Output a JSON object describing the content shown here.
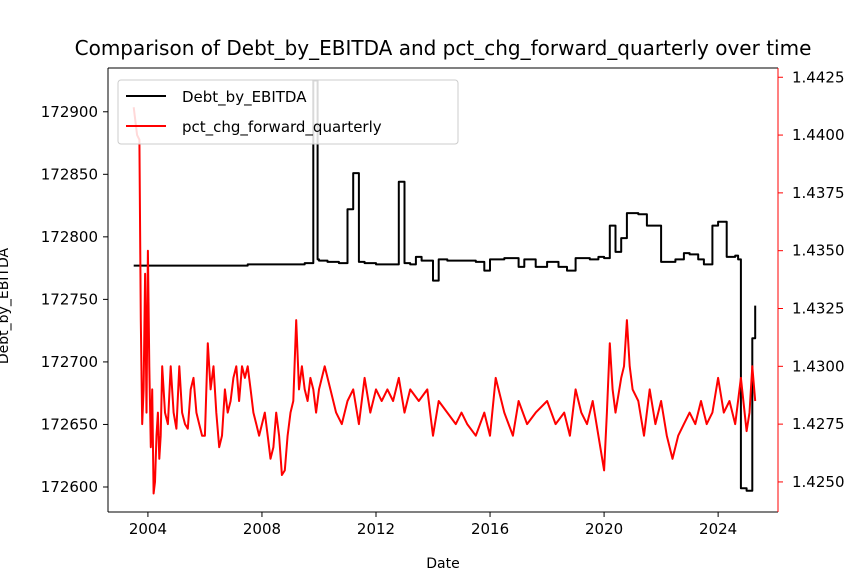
{
  "chart_data": {
    "type": "line",
    "title": "Comparison of Debt_by_EBITDA and pct_chg_forward_quarterly over time",
    "xlabel": "Date",
    "ylabel": "Debt_by_EBITDA",
    "xlim": [
      2002.6,
      2026.1
    ],
    "ylim_left": [
      172580,
      172935
    ],
    "ylim_right": [
      1.4237,
      1.4429
    ],
    "xticks": [
      2004,
      2008,
      2012,
      2016,
      2020,
      2024
    ],
    "yticks_left": [
      172600,
      172650,
      172700,
      172750,
      172800,
      172850,
      172900
    ],
    "yticks_right": [
      1.425,
      1.4275,
      1.43,
      1.4325,
      1.435,
      1.4375,
      1.44,
      1.4425
    ],
    "right_axis_color": "#ff0000",
    "grid": false,
    "legend_position": "upper-left",
    "series": [
      {
        "name": "Debt_by_EBITDA",
        "axis": "left",
        "color": "#000000",
        "step": true,
        "x": [
          2003.5,
          2004.0,
          2006.0,
          2007.0,
          2007.5,
          2009.0,
          2009.5,
          2009.8,
          2009.95,
          2010.0,
          2010.3,
          2010.7,
          2011.0,
          2011.2,
          2011.4,
          2011.6,
          2012.0,
          2012.8,
          2013.0,
          2013.2,
          2013.4,
          2013.6,
          2014.0,
          2014.2,
          2014.5,
          2015.5,
          2015.8,
          2016.0,
          2016.5,
          2017.0,
          2017.2,
          2017.6,
          2018.0,
          2018.4,
          2018.7,
          2019.0,
          2019.5,
          2019.8,
          2020.0,
          2020.2,
          2020.4,
          2020.6,
          2020.8,
          2021.2,
          2021.5,
          2022.0,
          2022.5,
          2022.8,
          2023.0,
          2023.3,
          2023.5,
          2023.8,
          2024.0,
          2024.3,
          2024.6,
          2024.7,
          2024.8,
          2025.0,
          2025.2,
          2025.3
        ],
        "values": [
          172777,
          172777,
          172777,
          172777,
          172778,
          172778,
          172779,
          172925,
          172782,
          172781,
          172780,
          172779,
          172822,
          172851,
          172780,
          172779,
          172778,
          172844,
          172779,
          172778,
          172784,
          172781,
          172765,
          172782,
          172781,
          172780,
          172773,
          172782,
          172783,
          172776,
          172782,
          172776,
          172780,
          172776,
          172773,
          172783,
          172782,
          172784,
          172783,
          172809,
          172788,
          172799,
          172819,
          172818,
          172809,
          172780,
          172782,
          172787,
          172786,
          172782,
          172778,
          172809,
          172812,
          172784,
          172785,
          172782,
          172599,
          172597,
          172719,
          172745
        ]
      },
      {
        "name": "pct_chg_forward_quarterly",
        "axis": "right",
        "color": "#ff0000",
        "step": false,
        "x": [
          2003.5,
          2003.62,
          2003.7,
          2003.75,
          2003.8,
          2003.85,
          2003.9,
          2003.95,
          2004.0,
          2004.05,
          2004.1,
          2004.15,
          2004.2,
          2004.25,
          2004.3,
          2004.35,
          2004.4,
          2004.45,
          2004.5,
          2004.6,
          2004.7,
          2004.8,
          2004.9,
          2005.0,
          2005.1,
          2005.2,
          2005.3,
          2005.4,
          2005.5,
          2005.6,
          2005.7,
          2005.8,
          2005.9,
          2006.0,
          2006.1,
          2006.2,
          2006.3,
          2006.4,
          2006.5,
          2006.6,
          2006.7,
          2006.8,
          2006.9,
          2007.0,
          2007.1,
          2007.2,
          2007.3,
          2007.4,
          2007.5,
          2007.6,
          2007.7,
          2007.8,
          2007.9,
          2008.0,
          2008.1,
          2008.2,
          2008.3,
          2008.4,
          2008.5,
          2008.6,
          2008.7,
          2008.8,
          2008.9,
          2009.0,
          2009.1,
          2009.2,
          2009.3,
          2009.4,
          2009.5,
          2009.6,
          2009.7,
          2009.8,
          2009.9,
          2010.0,
          2010.2,
          2010.4,
          2010.6,
          2010.8,
          2011.0,
          2011.2,
          2011.4,
          2011.6,
          2011.8,
          2012.0,
          2012.2,
          2012.4,
          2012.6,
          2012.8,
          2013.0,
          2013.2,
          2013.5,
          2013.8,
          2014.0,
          2014.2,
          2014.5,
          2014.8,
          2015.0,
          2015.2,
          2015.5,
          2015.8,
          2016.0,
          2016.2,
          2016.5,
          2016.8,
          2017.0,
          2017.3,
          2017.6,
          2018.0,
          2018.3,
          2018.6,
          2018.8,
          2019.0,
          2019.2,
          2019.4,
          2019.6,
          2019.8,
          2020.0,
          2020.1,
          2020.2,
          2020.3,
          2020.4,
          2020.6,
          2020.7,
          2020.8,
          2020.9,
          2021.0,
          2021.2,
          2021.4,
          2021.6,
          2021.8,
          2022.0,
          2022.2,
          2022.4,
          2022.6,
          2022.8,
          2023.0,
          2023.2,
          2023.4,
          2023.6,
          2023.8,
          2024.0,
          2024.2,
          2024.4,
          2024.6,
          2024.8,
          2025.0,
          2025.1,
          2025.2,
          2025.3
        ],
        "values": [
          1.4412,
          1.44,
          1.4398,
          1.432,
          1.4275,
          1.429,
          1.434,
          1.428,
          1.435,
          1.43,
          1.4265,
          1.429,
          1.4245,
          1.425,
          1.427,
          1.428,
          1.426,
          1.427,
          1.43,
          1.428,
          1.4275,
          1.43,
          1.428,
          1.4273,
          1.43,
          1.428,
          1.4275,
          1.4273,
          1.429,
          1.4295,
          1.428,
          1.4275,
          1.427,
          1.427,
          1.431,
          1.429,
          1.43,
          1.428,
          1.4265,
          1.427,
          1.429,
          1.428,
          1.4285,
          1.4295,
          1.43,
          1.4285,
          1.43,
          1.4295,
          1.43,
          1.429,
          1.428,
          1.4275,
          1.427,
          1.4275,
          1.428,
          1.427,
          1.426,
          1.4265,
          1.428,
          1.427,
          1.4253,
          1.4255,
          1.427,
          1.428,
          1.4285,
          1.432,
          1.429,
          1.43,
          1.429,
          1.4285,
          1.4295,
          1.429,
          1.428,
          1.429,
          1.43,
          1.429,
          1.428,
          1.4275,
          1.4285,
          1.429,
          1.4275,
          1.4295,
          1.428,
          1.429,
          1.4285,
          1.429,
          1.4285,
          1.4295,
          1.428,
          1.429,
          1.4285,
          1.429,
          1.427,
          1.4285,
          1.428,
          1.4275,
          1.428,
          1.4275,
          1.427,
          1.428,
          1.427,
          1.4295,
          1.428,
          1.427,
          1.4285,
          1.4275,
          1.428,
          1.4285,
          1.4275,
          1.428,
          1.427,
          1.429,
          1.428,
          1.4275,
          1.4285,
          1.427,
          1.4255,
          1.428,
          1.431,
          1.429,
          1.428,
          1.4295,
          1.43,
          1.432,
          1.43,
          1.429,
          1.4285,
          1.427,
          1.429,
          1.4275,
          1.4285,
          1.427,
          1.426,
          1.427,
          1.4275,
          1.428,
          1.4275,
          1.4285,
          1.4275,
          1.428,
          1.4295,
          1.428,
          1.4285,
          1.4275,
          1.4295,
          1.4272,
          1.428,
          1.43,
          1.4285
        ]
      }
    ]
  }
}
